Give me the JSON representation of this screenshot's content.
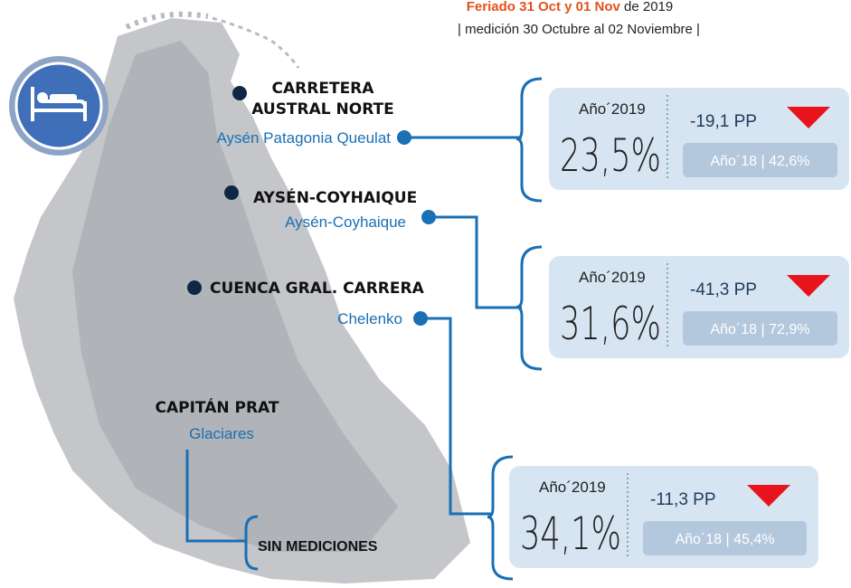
{
  "header": {
    "highlight": "Feriado 31 Oct y 01 Nov",
    "rest": " de 2019",
    "subtitle": "| medición 30 Octubre al 02 Noviembre |"
  },
  "regions": [
    {
      "name": [
        "CARRETERA",
        "AUSTRAL NORTE"
      ],
      "sub": "Aysén Patagonia Queulat"
    },
    {
      "name": [
        "AYSÉN-COYHAIQUE"
      ],
      "sub": "Aysén-Coyhaique"
    },
    {
      "name": [
        "CUENCA GRAL. CARRERA"
      ],
      "sub": "Chelenko"
    },
    {
      "name": [
        "CAPITÁN PRAT"
      ],
      "sub": "Glaciares"
    }
  ],
  "no_data": "SIN  MEDICIONES",
  "cards": [
    {
      "year": "Año´2019",
      "value": "23,5%",
      "change": "-19,1 PP",
      "previous": "Año´18 | 42,6%"
    },
    {
      "year": "Año´2019",
      "value": "31,6%",
      "change": "-41,3 PP",
      "previous": "Año´18 | 72,9%"
    },
    {
      "year": "Año´2019",
      "value": "34,1%",
      "change": "-11,3 PP",
      "previous": "Año´18 | 45,4%"
    }
  ]
}
